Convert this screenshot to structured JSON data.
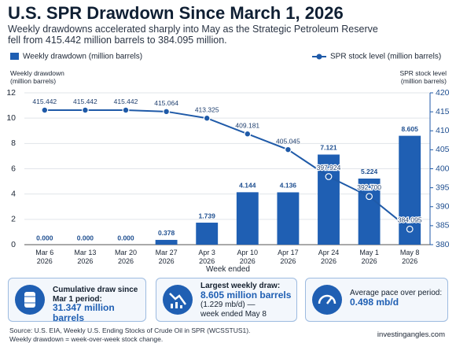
{
  "chart_data": {
    "type": "bar_line",
    "title": "U.S. SPR Drawdown Since March 1, 2026",
    "subtitle": "Weekly drawdowns accelerated sharply into May as the Strategic Petroleum Reserve\nfell from 415.442 million barrels to 384.095 million.",
    "y_label": "Weekly drawdown\n(million barrels)",
    "y2_label": "SPR stock level\n(million barrels)",
    "x_label": "Week ended",
    "categories": [
      "Mar 6\n2026",
      "Mar 13\n2026",
      "Mar 20\n2026",
      "Mar 27\n2026",
      "Apr 3\n2026",
      "Apr 10\n2026",
      "Apr 17\n2026",
      "Apr 24\n2026",
      "May 1\n2026",
      "May 8\n2026"
    ],
    "series": [
      {
        "name": "Weekly drawdown (million barrels)",
        "type": "bar",
        "color": "#1f5fb3",
        "values": [
          0,
          0,
          0,
          0.378,
          1.739,
          4.144,
          4.136,
          7.121,
          5.224,
          8.605
        ],
        "value_labels": [
          "0.000",
          "0.000",
          "0.000",
          "0.378",
          "1.739",
          "4.144",
          "4.136",
          "7.121",
          "5.224",
          "8.605"
        ]
      },
      {
        "name": "SPR stock level (million barrels)",
        "type": "line",
        "axis": "y2",
        "color": "#1f5aa8",
        "values": [
          415.442,
          415.442,
          415.442,
          415.064,
          413.325,
          409.181,
          405.045,
          397.924,
          392.7,
          384.095
        ],
        "value_labels": [
          "415.442",
          "415.442",
          "415.442",
          "415.064",
          "413.325",
          "409.181",
          "405.045",
          "397.924",
          "392.700",
          "384.095"
        ]
      }
    ],
    "ylim": [
      0,
      12
    ],
    "yticks": [
      0,
      2,
      4,
      6,
      8,
      10,
      12
    ],
    "y2lim": [
      380,
      420
    ],
    "y2ticks": [
      380,
      385,
      390,
      395,
      400,
      405,
      410,
      415,
      420
    ],
    "grid": true
  },
  "cards": [
    {
      "label": "Cumulative draw since\nMar 1 period:",
      "value": "31.347 million barrels"
    },
    {
      "label": "Largest weekly draw:",
      "value": "8.605 million barrels",
      "note": "(1.229 mb/d) —\nweek ended May 8"
    },
    {
      "label": "Average pace over period:",
      "value": "0.498 mb/d"
    }
  ],
  "footer": {
    "source": "Source: U.S. EIA, Weekly U.S. Ending Stocks of Crude Oil in SPR (WCSSTUS1).\nWeekly drawdown = week-over-week stock change.",
    "brand": "investingangles.com"
  }
}
